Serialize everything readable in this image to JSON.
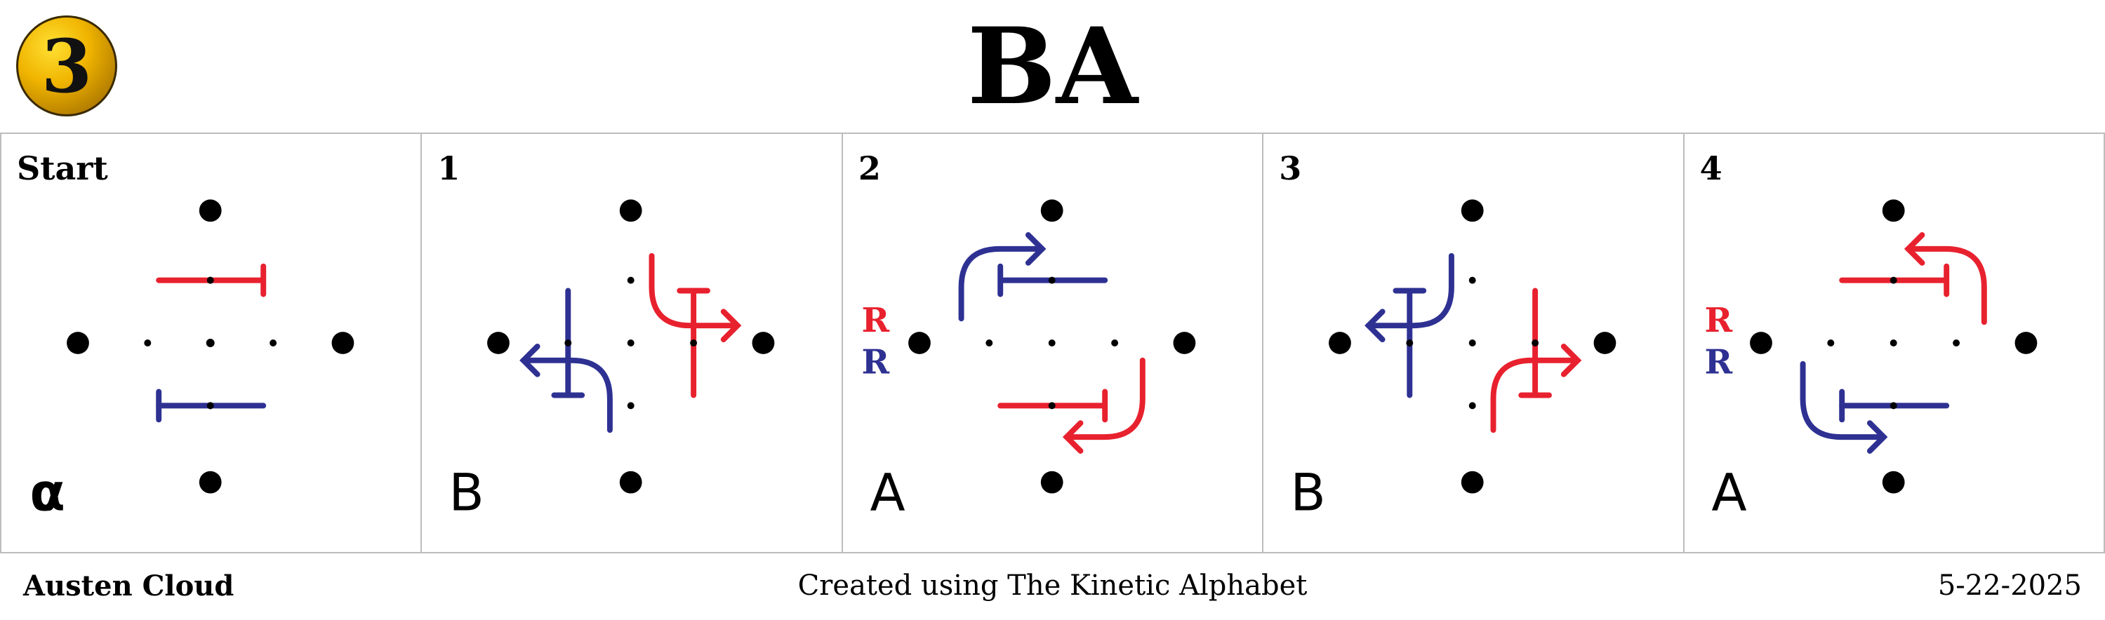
{
  "badge": {
    "number": "3"
  },
  "title": "BA",
  "colors": {
    "red": "#e8212e",
    "blue": "#2e3192",
    "badge_gold": "#f0b400"
  },
  "panels": [
    {
      "label": "Start",
      "symbol": "α",
      "rr": false
    },
    {
      "label": "1",
      "symbol": "B",
      "rr": false
    },
    {
      "label": "2",
      "symbol": "A",
      "rr": true
    },
    {
      "label": "3",
      "symbol": "B",
      "rr": false
    },
    {
      "label": "4",
      "symbol": "A",
      "rr": true
    }
  ],
  "rr_labels": {
    "top": "R",
    "bottom": "R"
  },
  "footer": {
    "author": "Austen Cloud",
    "credit": "Created using The Kinetic Alphabet",
    "date": "5-22-2025"
  }
}
